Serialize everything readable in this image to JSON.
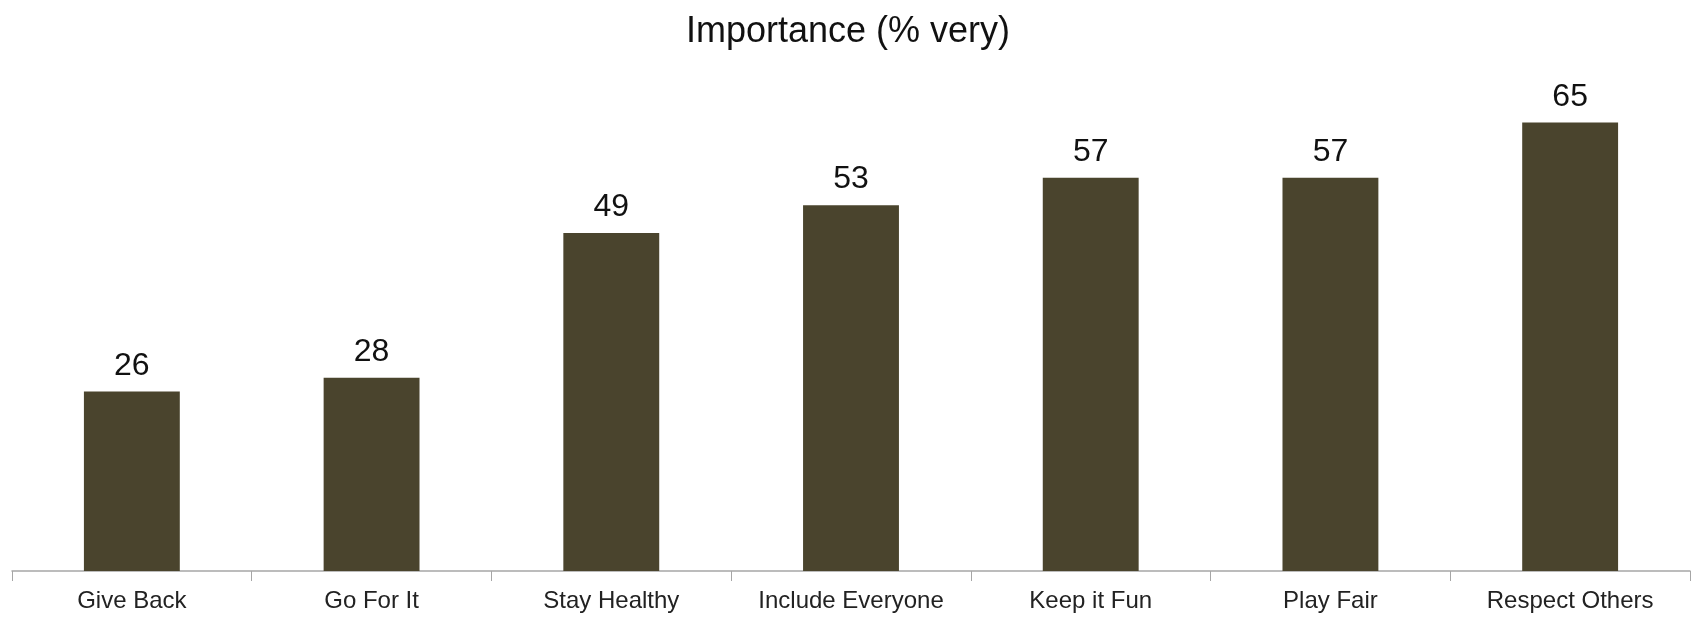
{
  "chart_data": {
    "type": "bar",
    "title": "Importance (% very)",
    "categories": [
      "Give Back",
      "Go For It",
      "Stay Healthy",
      "Include Everyone",
      "Keep it Fun",
      "Play Fair",
      "Respect Others"
    ],
    "values": [
      26,
      28,
      49,
      53,
      57,
      57,
      65
    ],
    "color": "#4a442d",
    "data_labels": true
  }
}
